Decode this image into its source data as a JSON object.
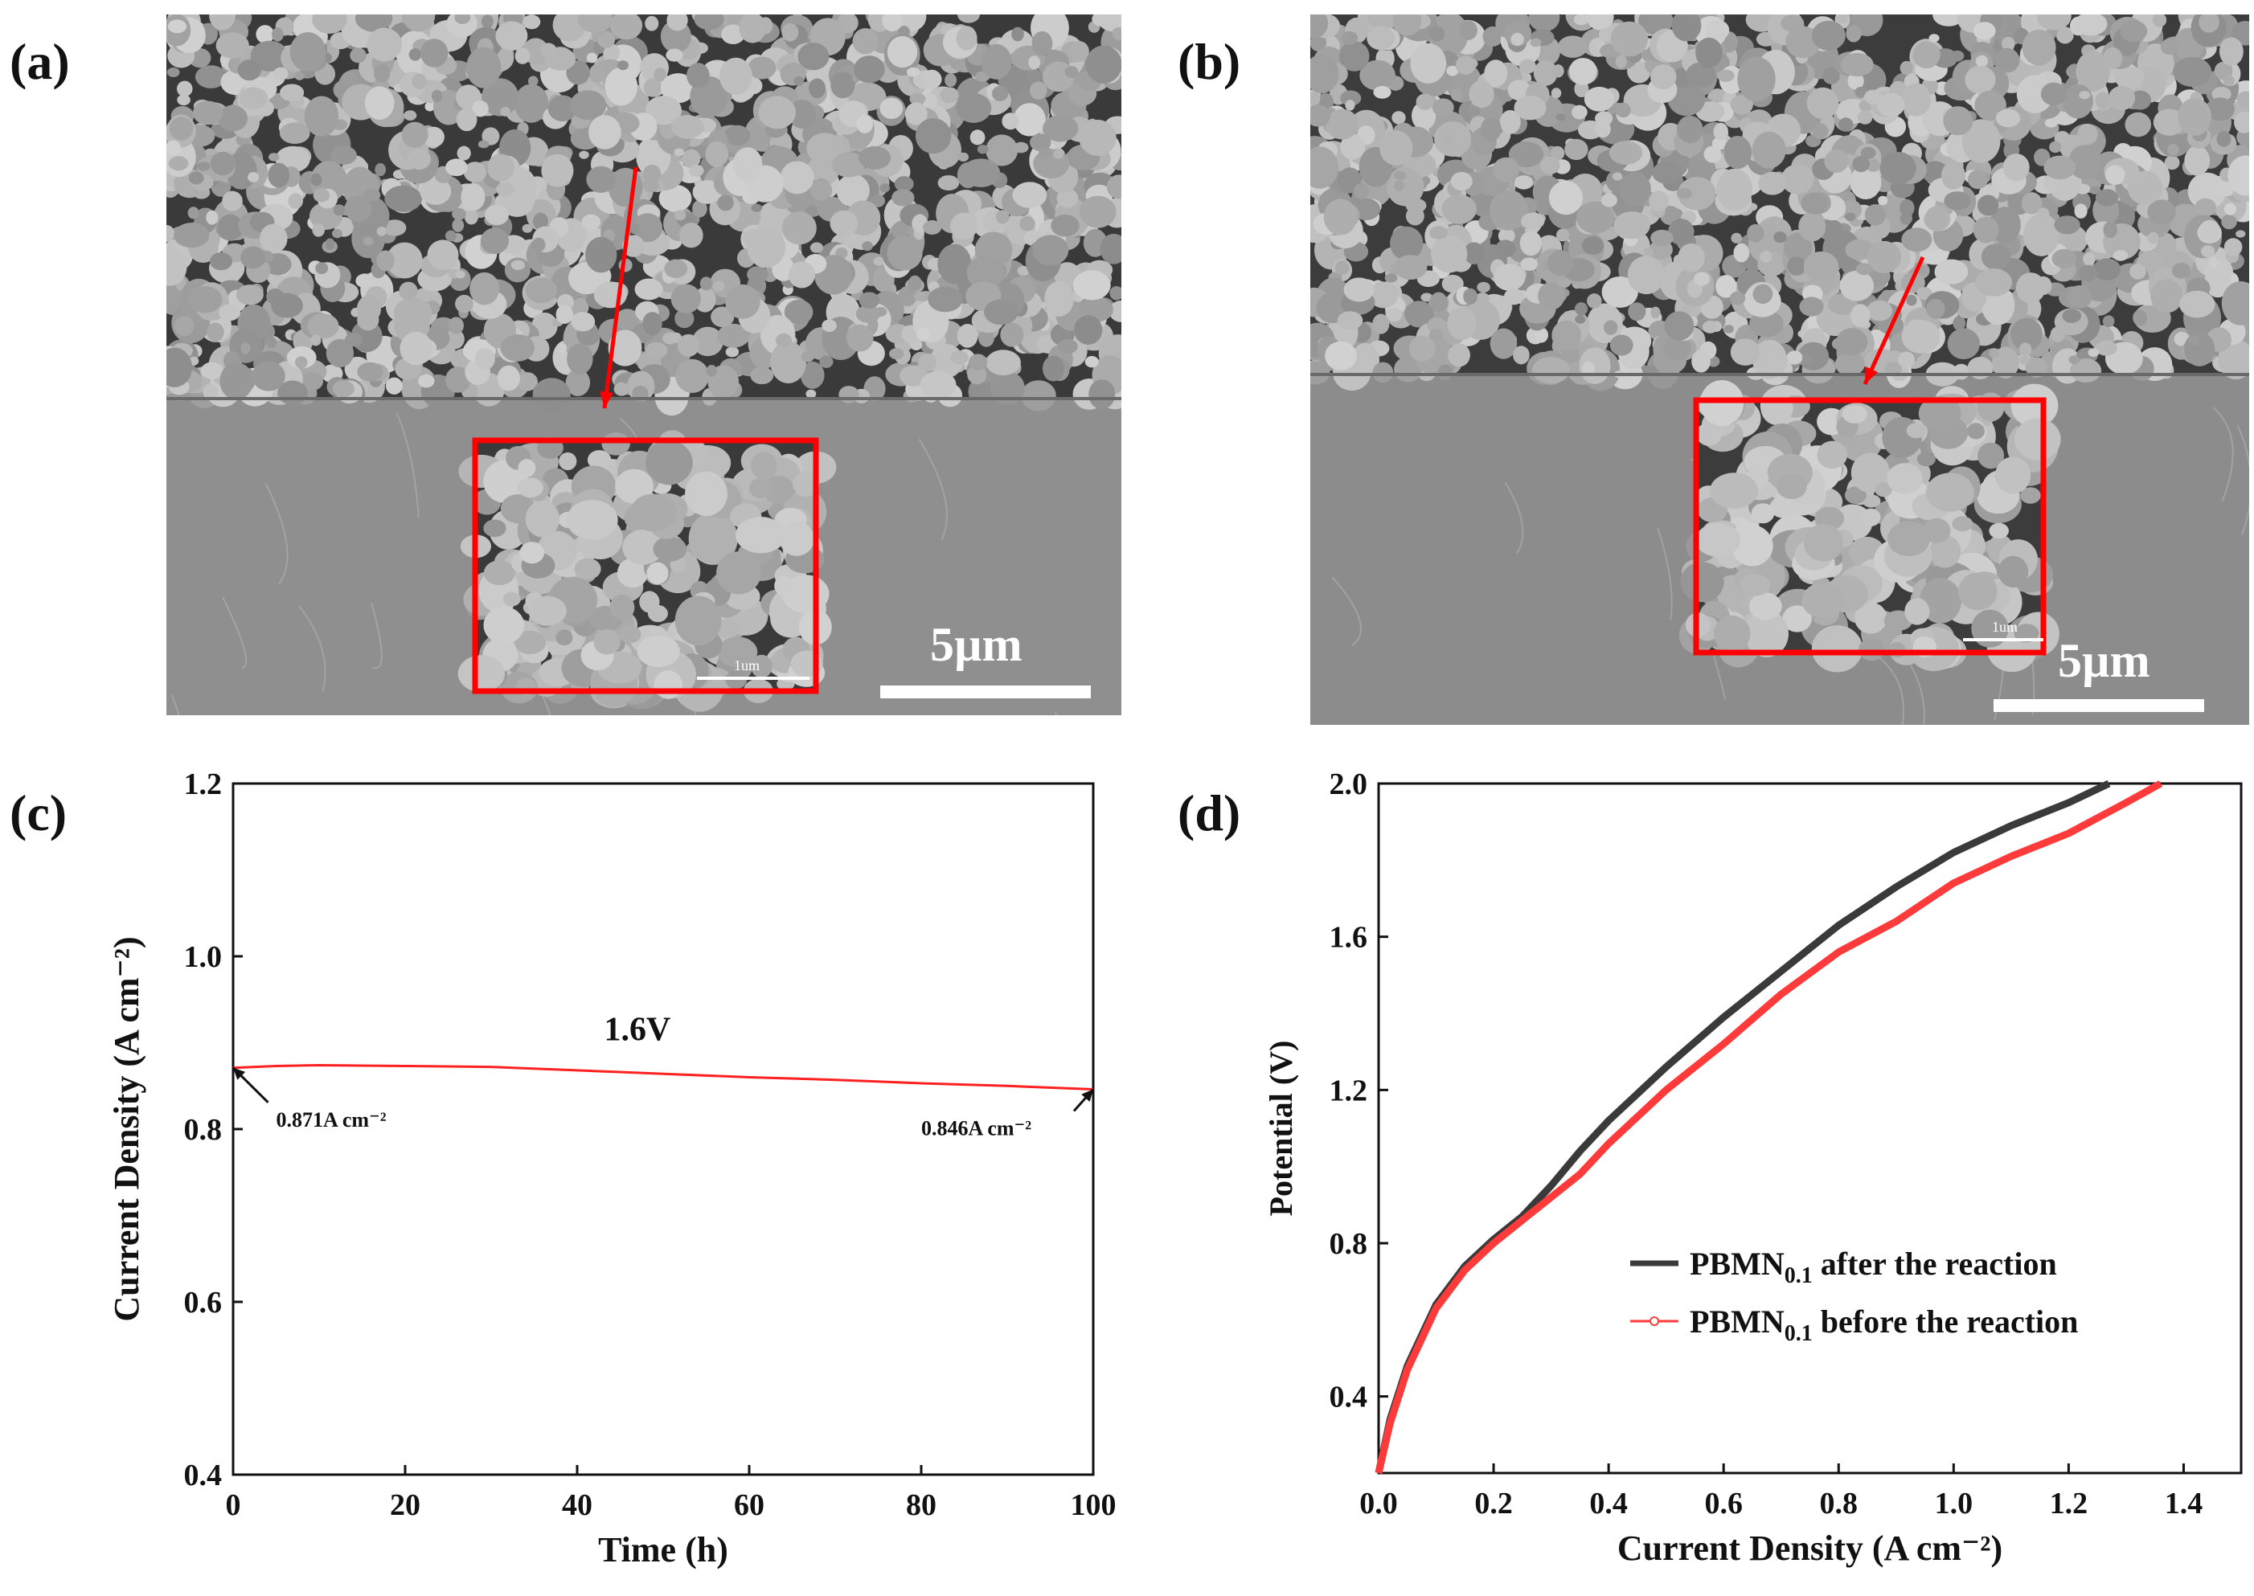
{
  "panel_a": {
    "label": "(a)",
    "scale_label": "5µm",
    "inset_scale_label": "1um",
    "colors": {
      "background": "#8f8f8f",
      "grain": "#b9b9b9",
      "pore": "#3a3a3a",
      "highlight": "#ff0000"
    }
  },
  "panel_b": {
    "label": "(b)",
    "scale_label": "5µm",
    "inset_scale_label": "1um",
    "colors": {
      "background": "#8c8c8c",
      "grain": "#b5b5b5",
      "pore": "#3c3c3c",
      "highlight": "#ff0000"
    }
  },
  "chart_data": [
    {
      "panel": "(c)",
      "type": "line",
      "xlabel": "Time (h)",
      "ylabel": "Current Density (A cm⁻²)",
      "xlim": [
        0,
        100
      ],
      "ylim": [
        0.4,
        1.2
      ],
      "xticks": [
        0,
        20,
        40,
        60,
        80,
        100
      ],
      "yticks": [
        0.4,
        0.6,
        0.8,
        1.0,
        1.2
      ],
      "xtick_labels": [
        "0",
        "20",
        "40",
        "60",
        "80",
        "100"
      ],
      "ytick_labels": [
        "0.4",
        "0.6",
        "0.8",
        "1.0",
        "1.2"
      ],
      "grid": false,
      "series": [
        {
          "color": "#ff2020",
          "x": [
            0,
            5,
            10,
            20,
            30,
            40,
            50,
            60,
            70,
            80,
            90,
            100
          ],
          "y": [
            0.871,
            0.873,
            0.874,
            0.873,
            0.872,
            0.868,
            0.864,
            0.86,
            0.857,
            0.853,
            0.85,
            0.846
          ]
        }
      ],
      "annotations": [
        {
          "text": "1.6V",
          "x": 47,
          "y": 0.903
        },
        {
          "text": "0.871A cm⁻²",
          "x": 5,
          "y": 0.803,
          "arrow_to": [
            0,
            0.871
          ]
        },
        {
          "text": "0.846A cm⁻²",
          "x": 80,
          "y": 0.793,
          "arrow_to": [
            100,
            0.846
          ]
        }
      ]
    },
    {
      "panel": "(d)",
      "type": "line",
      "xlabel": "Current Density (A cm⁻²)",
      "ylabel": "Potential (V)",
      "xlim": [
        0,
        1.5
      ],
      "ylim": [
        0.2,
        2.0
      ],
      "xticks": [
        0,
        0.2,
        0.4,
        0.6,
        0.8,
        1.0,
        1.2,
        1.4
      ],
      "yticks": [
        0.4,
        0.8,
        1.2,
        1.6,
        2.0
      ],
      "xtick_labels": [
        "0.0",
        "0.2",
        "0.4",
        "0.6",
        "0.8",
        "1.0",
        "1.2",
        "1.4"
      ],
      "ytick_labels": [
        "0.4",
        "0.8",
        "1.2",
        "1.6",
        "2.0"
      ],
      "grid": false,
      "legend_position": "bottom-right",
      "series": [
        {
          "name": "PBMN0.1  after   the reaction",
          "legend_main": "PBMN",
          "legend_sub": "0.1",
          "legend_rest": " after   the reaction",
          "color": "#3a3a3a",
          "x": [
            0.0,
            0.02,
            0.05,
            0.1,
            0.15,
            0.2,
            0.25,
            0.3,
            0.35,
            0.4,
            0.5,
            0.6,
            0.7,
            0.8,
            0.9,
            1.0,
            1.1,
            1.2,
            1.27
          ],
          "y": [
            0.2,
            0.34,
            0.48,
            0.64,
            0.74,
            0.81,
            0.87,
            0.95,
            1.04,
            1.12,
            1.26,
            1.39,
            1.51,
            1.63,
            1.73,
            1.82,
            1.89,
            1.95,
            2.0
          ]
        },
        {
          "name": "PBMN0.1 before the reaction",
          "legend_main": "PBMN",
          "legend_sub": "0.1",
          "legend_rest": " before the reaction",
          "color": "#ff3a3a",
          "x": [
            0.0,
            0.02,
            0.05,
            0.1,
            0.15,
            0.2,
            0.25,
            0.3,
            0.35,
            0.4,
            0.5,
            0.6,
            0.7,
            0.8,
            0.9,
            1.0,
            1.1,
            1.2,
            1.3,
            1.36
          ],
          "y": [
            0.2,
            0.33,
            0.47,
            0.63,
            0.73,
            0.8,
            0.86,
            0.92,
            0.98,
            1.06,
            1.2,
            1.32,
            1.45,
            1.56,
            1.64,
            1.74,
            1.81,
            1.87,
            1.95,
            2.0
          ]
        }
      ]
    }
  ],
  "panel_c": {
    "label": "(c)"
  },
  "panel_d": {
    "label": "(d)"
  }
}
